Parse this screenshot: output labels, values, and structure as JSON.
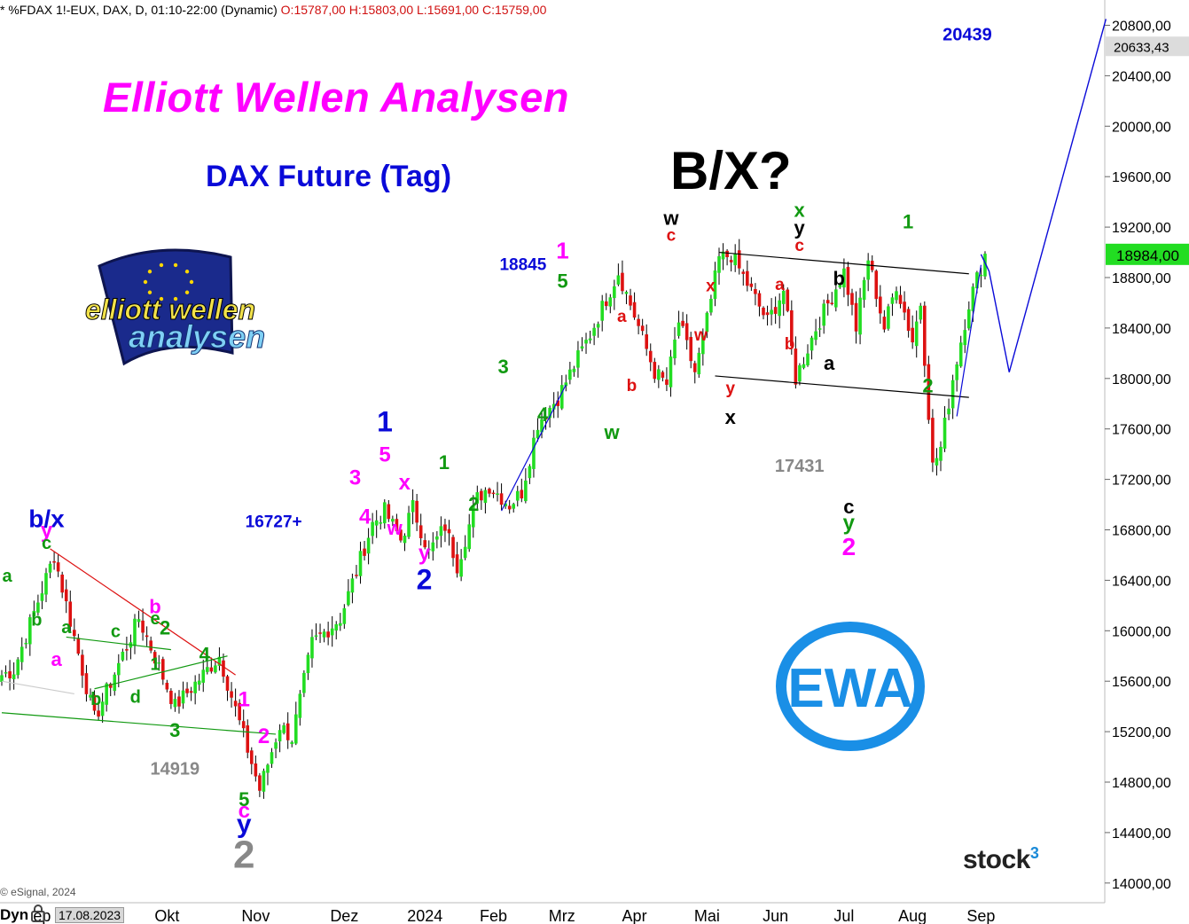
{
  "header": {
    "symbol": "* %FDAX 1!-EUX, DAX, D, 01:10-22:00 (Dynamic)",
    "ohlc": "O:15787,00 H:15803,00 L:15691,00 C:15759,00"
  },
  "title": "Elliott Wellen Analysen",
  "subtitle": "DAX Future (Tag)",
  "big_label": "B/X?",
  "footer": {
    "copyright": "© eSignal, 2024",
    "brand": "stock",
    "brand_sup": "3",
    "cursor_date": "17.08.2023",
    "cursor_prefix": "Dyn"
  },
  "logos": {
    "ewa": "EWA",
    "elliott_top": "elliott wellen",
    "elliott_bottom": "analysen"
  },
  "colors": {
    "up": "#22dd22",
    "down": "#dd1111",
    "magenta": "#ff00ff",
    "green_label": "#119911",
    "blue_label": "#0a0ad8",
    "red_label": "#dd1111",
    "grey_label": "#888888",
    "ewa_blue": "#1a8fe6",
    "price_box": "#22dd22"
  },
  "chart_data": {
    "type": "candlestick",
    "title": "DAX Future (Tag)",
    "ylim": [
      13900,
      20900
    ],
    "y_ticks": [
      14000,
      14400,
      14800,
      15200,
      15600,
      16000,
      16400,
      16800,
      17200,
      17600,
      18000,
      18400,
      18800,
      19200,
      19600,
      20000,
      20400,
      20800
    ],
    "y_tick_labels": [
      "14000,00",
      "14400,00",
      "14800,00",
      "15200,00",
      "15600,00",
      "16000,00",
      "16400,00",
      "16800,00",
      "17200,00",
      "17600,00",
      "18000,00",
      "18400,00",
      "18800,00",
      "19200,00",
      "19600,00",
      "20000,00",
      "20400,00",
      "20800,00"
    ],
    "x_labels": [
      "ep",
      "Okt",
      "Nov",
      "Dez",
      "2024",
      "Feb",
      "Mrz",
      "Apr",
      "Mai",
      "Jun",
      "Jul",
      "Aug",
      "Sep"
    ],
    "x_label_bars": [
      10,
      41,
      63,
      85,
      105,
      122,
      139,
      157,
      175,
      192,
      209,
      226,
      243
    ],
    "bar_count": 246,
    "current_price": "18984,00",
    "target_price_label": "20633,43",
    "keyprices": [
      {
        "bar": 3,
        "value": 15690
      },
      {
        "bar": 13,
        "value": 16600
      },
      {
        "bar": 23,
        "value": 15300
      },
      {
        "bar": 34,
        "value": 16100
      },
      {
        "bar": 43,
        "value": 15400
      },
      {
        "bar": 54,
        "value": 15800
      },
      {
        "bar": 64,
        "value": 14740
      },
      {
        "bar": 69,
        "value": 15250
      },
      {
        "bar": 72,
        "value": 15150
      },
      {
        "bar": 77,
        "value": 15900
      },
      {
        "bar": 84,
        "value": 16100
      },
      {
        "bar": 92,
        "value": 16850
      },
      {
        "bar": 95,
        "value": 16950
      },
      {
        "bar": 99,
        "value": 16720
      },
      {
        "bar": 102,
        "value": 16980
      },
      {
        "bar": 106,
        "value": 16620
      },
      {
        "bar": 110,
        "value": 16830
      },
      {
        "bar": 113,
        "value": 16520
      },
      {
        "bar": 118,
        "value": 17050
      },
      {
        "bar": 121,
        "value": 17150
      },
      {
        "bar": 126,
        "value": 17000
      },
      {
        "bar": 129,
        "value": 17100
      },
      {
        "bar": 133,
        "value": 17650
      },
      {
        "bar": 138,
        "value": 17850
      },
      {
        "bar": 146,
        "value": 18350
      },
      {
        "bar": 153,
        "value": 18845
      },
      {
        "bar": 157,
        "value": 18500
      },
      {
        "bar": 162,
        "value": 18050
      },
      {
        "bar": 165,
        "value": 17950
      },
      {
        "bar": 168,
        "value": 18450
      },
      {
        "bar": 172,
        "value": 18050
      },
      {
        "bar": 174,
        "value": 18300
      },
      {
        "bar": 178,
        "value": 18950
      },
      {
        "bar": 181,
        "value": 18980
      },
      {
        "bar": 185,
        "value": 18750
      },
      {
        "bar": 190,
        "value": 18450
      },
      {
        "bar": 194,
        "value": 18700
      },
      {
        "bar": 197,
        "value": 18000
      },
      {
        "bar": 202,
        "value": 18400
      },
      {
        "bar": 209,
        "value": 18850
      },
      {
        "bar": 212,
        "value": 18400
      },
      {
        "bar": 215,
        "value": 18950
      },
      {
        "bar": 219,
        "value": 18400
      },
      {
        "bar": 222,
        "value": 18750
      },
      {
        "bar": 226,
        "value": 18300
      },
      {
        "bar": 228,
        "value": 18600
      },
      {
        "bar": 231,
        "value": 17300
      },
      {
        "bar": 233,
        "value": 17450
      },
      {
        "bar": 236,
        "value": 18000
      },
      {
        "bar": 240,
        "value": 18600
      },
      {
        "bar": 244,
        "value": 18984
      }
    ],
    "annotations": [
      {
        "text": "b/x",
        "bar": 4,
        "price": 16820,
        "color": "blue_label",
        "size": 28
      },
      {
        "text": "y",
        "bar": 4,
        "price": 16740,
        "color": "magenta",
        "size": 24
      },
      {
        "text": "c",
        "bar": 4,
        "price": 16650,
        "color": "green_label",
        "size": 20
      },
      {
        "text": "a",
        "bar": 0,
        "price": 16390,
        "color": "green_label",
        "size": 20
      },
      {
        "text": "b",
        "bar": 3,
        "price": 16040,
        "color": "green_label",
        "size": 20
      },
      {
        "text": "a",
        "bar": 5,
        "price": 15720,
        "color": "magenta",
        "size": 22
      },
      {
        "text": "a",
        "bar": 6,
        "price": 15980,
        "color": "green_label",
        "size": 20
      },
      {
        "text": "c",
        "bar": 11,
        "price": 15950,
        "color": "green_label",
        "size": 20
      },
      {
        "text": "b",
        "bar": 9,
        "price": 15410,
        "color": "green_label",
        "size": 20
      },
      {
        "text": "d",
        "bar": 13,
        "price": 15430,
        "color": "green_label",
        "size": 20
      },
      {
        "text": "b",
        "bar": 15,
        "price": 16140,
        "color": "magenta",
        "size": 22
      },
      {
        "text": "e",
        "bar": 15,
        "price": 16050,
        "color": "green_label",
        "size": 20
      },
      {
        "text": "2",
        "bar": 16,
        "price": 15970,
        "color": "green_label",
        "size": 22
      },
      {
        "text": "1",
        "bar": 15,
        "price": 15690,
        "color": "green_label",
        "size": 20
      },
      {
        "text": "4",
        "bar": 20,
        "price": 15760,
        "color": "green_label",
        "size": 22
      },
      {
        "text": "3",
        "bar": 17,
        "price": 15160,
        "color": "green_label",
        "size": 22
      },
      {
        "text": "14919",
        "bar": 17,
        "price": 14860,
        "color": "grey_label",
        "size": 20
      },
      {
        "text": "1",
        "bar": 24,
        "price": 15400,
        "color": "magenta",
        "size": 24
      },
      {
        "text": "2",
        "bar": 26,
        "price": 15110,
        "color": "magenta",
        "size": 24
      },
      {
        "text": "5",
        "bar": 24,
        "price": 14610,
        "color": "green_label",
        "size": 22
      },
      {
        "text": "c",
        "bar": 24,
        "price": 14520,
        "color": "magenta",
        "size": 24
      },
      {
        "text": "y",
        "bar": 24,
        "price": 14400,
        "color": "blue_label",
        "size": 30
      },
      {
        "text": "2",
        "bar": 24,
        "price": 14120,
        "color": "grey_label",
        "size": 44
      },
      {
        "text": "16727+",
        "bar": 27,
        "price": 16820,
        "color": "blue_label",
        "size": 19
      },
      {
        "text": "3",
        "bar": 34,
        "price": 17160,
        "color": "magenta",
        "size": 24
      },
      {
        "text": "4",
        "bar": 35,
        "price": 16850,
        "color": "magenta",
        "size": 24
      },
      {
        "text": "1",
        "bar": 37,
        "price": 17580,
        "color": "blue_label",
        "size": 32
      },
      {
        "text": "5",
        "bar": 37,
        "price": 17340,
        "color": "magenta",
        "size": 24
      },
      {
        "text": "x",
        "bar": 39,
        "price": 17120,
        "color": "magenta",
        "size": 24
      },
      {
        "text": "w",
        "bar": 38,
        "price": 16760,
        "color": "magenta",
        "size": 22
      },
      {
        "text": "y",
        "bar": 41,
        "price": 16560,
        "color": "magenta",
        "size": 24
      },
      {
        "text": "2",
        "bar": 41,
        "price": 16330,
        "color": "blue_label",
        "size": 32
      },
      {
        "text": "1",
        "bar": 43,
        "price": 17280,
        "color": "green_label",
        "size": 22
      },
      {
        "text": "2",
        "bar": 46,
        "price": 16950,
        "color": "green_label",
        "size": 22
      },
      {
        "text": "3",
        "bar": 49,
        "price": 18040,
        "color": "green_label",
        "size": 22
      },
      {
        "text": "4",
        "bar": 53,
        "price": 17660,
        "color": "green_label",
        "size": 22
      },
      {
        "text": "18845",
        "bar": 51,
        "price": 18860,
        "color": "blue_label",
        "size": 19
      },
      {
        "text": "1",
        "bar": 55,
        "price": 18950,
        "color": "magenta",
        "size": 26
      },
      {
        "text": "5",
        "bar": 55,
        "price": 18720,
        "color": "green_label",
        "size": 22
      },
      {
        "text": "a",
        "bar": 61,
        "price": 18450,
        "color": "red_label",
        "size": 19
      },
      {
        "text": "b",
        "bar": 62,
        "price": 17900,
        "color": "red_label",
        "size": 19
      },
      {
        "text": "w",
        "bar": 60,
        "price": 17520,
        "color": "green_label",
        "size": 22
      },
      {
        "text": "w",
        "bar": 66,
        "price": 19220,
        "color": "#000",
        "size": 22
      },
      {
        "text": "c",
        "bar": 66,
        "price": 19090,
        "color": "red_label",
        "size": 19
      },
      {
        "text": "x",
        "bar": 70,
        "price": 18690,
        "color": "red_label",
        "size": 19
      },
      {
        "text": "w",
        "bar": 69,
        "price": 18300,
        "color": "red_label",
        "size": 19
      },
      {
        "text": "y",
        "bar": 72,
        "price": 17880,
        "color": "red_label",
        "size": 19
      },
      {
        "text": "x",
        "bar": 72,
        "price": 17640,
        "color": "#000",
        "size": 22
      },
      {
        "text": "x",
        "bar": 79,
        "price": 19280,
        "color": "green_label",
        "size": 22
      },
      {
        "text": "y",
        "bar": 79,
        "price": 19140,
        "color": "#000",
        "size": 22
      },
      {
        "text": "c",
        "bar": 79,
        "price": 19010,
        "color": "red_label",
        "size": 19
      },
      {
        "text": "a",
        "bar": 77,
        "price": 18700,
        "color": "red_label",
        "size": 19
      },
      {
        "text": "b",
        "bar": 78,
        "price": 18230,
        "color": "red_label",
        "size": 19
      },
      {
        "text": "b",
        "bar": 83,
        "price": 18740,
        "color": "#000",
        "size": 22
      },
      {
        "text": "a",
        "bar": 82,
        "price": 18070,
        "color": "#000",
        "size": 22
      },
      {
        "text": "17431",
        "bar": 79,
        "price": 17260,
        "color": "grey_label",
        "size": 20
      },
      {
        "text": "c",
        "bar": 84,
        "price": 16930,
        "color": "#000",
        "size": 22
      },
      {
        "text": "y",
        "bar": 84,
        "price": 16800,
        "color": "green_label",
        "size": 24
      },
      {
        "text": "2",
        "bar": 84,
        "price": 16600,
        "color": "magenta",
        "size": 28
      },
      {
        "text": "1",
        "bar": 90,
        "price": 19190,
        "color": "green_label",
        "size": 22
      },
      {
        "text": "2",
        "bar": 92,
        "price": 17890,
        "color": "green_label",
        "size": 22
      },
      {
        "text": "20439",
        "bar": 96,
        "price": 20680,
        "color": "blue_label",
        "size": 20
      }
    ]
  }
}
